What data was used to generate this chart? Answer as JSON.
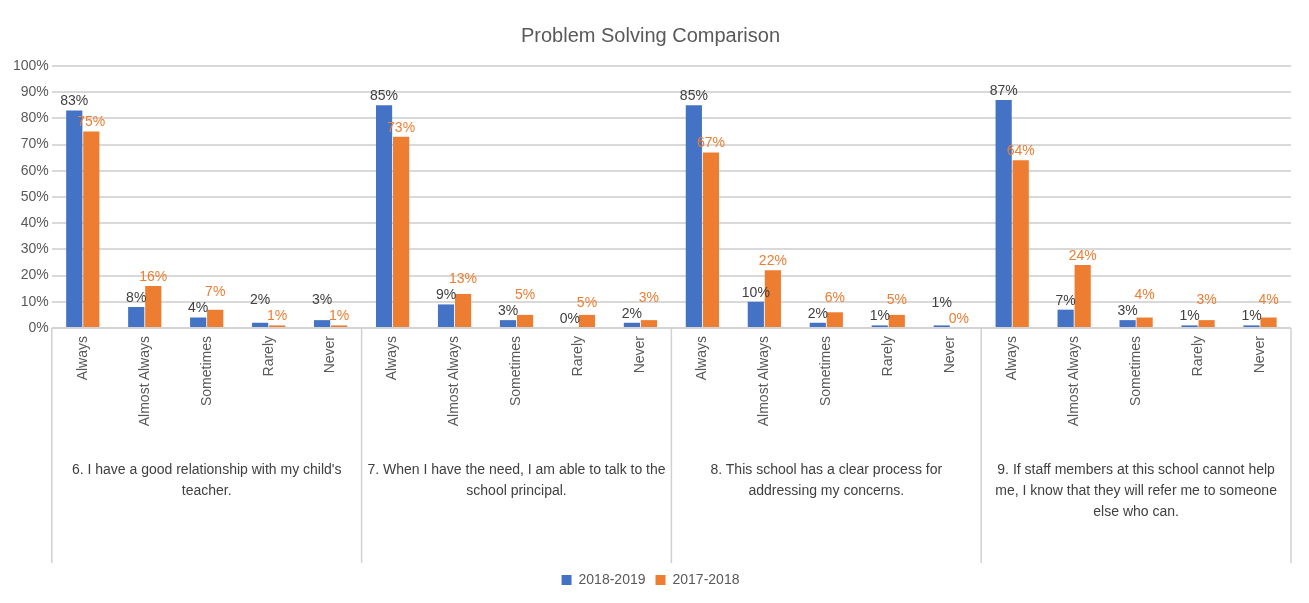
{
  "chart_data": {
    "type": "bar",
    "title": "Problem Solving Comparison",
    "categories": [
      "Always",
      "Almost Always",
      "Sometimes",
      "Rarely",
      "Never",
      "Always",
      "Almost Always",
      "Sometimes",
      "Rarely",
      "Never",
      "Always",
      "Almost Always",
      "Sometimes",
      "Rarely",
      "Never",
      "Always",
      "Almost Always",
      "Sometimes",
      "Rarely",
      "Never"
    ],
    "annotations": [
      "6. I have a good relationship with my child's teacher.",
      "7. When I have the need, I am able to talk to the school principal.",
      "8. This school has a clear process for addressing my concerns.",
      "9. If staff members at this school cannot help me, I know that they will refer me to someone else who can."
    ],
    "series": [
      {
        "name": "2018-2019",
        "color": "#4472c4",
        "values": [
          83,
          8,
          4,
          2,
          3,
          85,
          9,
          3,
          0,
          2,
          85,
          10,
          2,
          1,
          1,
          87,
          7,
          3,
          1,
          1
        ],
        "value_labels": [
          "83%",
          "8%",
          "4%",
          "2%",
          "3%",
          "85%",
          "9%",
          "3%",
          "0%",
          "2%",
          "85%",
          "10%",
          "2%",
          "1%",
          "1%",
          "87%",
          "7%",
          "3%",
          "1%",
          "1%"
        ]
      },
      {
        "name": "2017-2018",
        "color": "#ed7d31",
        "values": [
          75,
          16,
          7,
          1,
          1,
          73,
          13,
          5,
          5,
          3,
          67,
          22,
          6,
          5,
          0,
          64,
          24,
          4,
          3,
          4
        ],
        "value_labels": [
          "75%",
          "16%",
          "7%",
          "1%",
          "1%",
          "73%",
          "13%",
          "5%",
          "5%",
          "3%",
          "67%",
          "22%",
          "6%",
          "5%",
          "0%",
          "64%",
          "24%",
          "4%",
          "3%",
          "4%"
        ]
      }
    ],
    "ylim": [
      0,
      100
    ],
    "yticks": [
      {
        "value": 0,
        "label": "0%"
      },
      {
        "value": 10,
        "label": "10%"
      },
      {
        "value": 20,
        "label": "20%"
      },
      {
        "value": 30,
        "label": "30%"
      },
      {
        "value": 40,
        "label": "40%"
      },
      {
        "value": 50,
        "label": "50%"
      },
      {
        "value": 60,
        "label": "60%"
      },
      {
        "value": 70,
        "label": "70%"
      },
      {
        "value": 80,
        "label": "80%"
      },
      {
        "value": 90,
        "label": "90%"
      },
      {
        "value": 100,
        "label": "100%"
      }
    ],
    "grid": "y",
    "legend": "bottom"
  }
}
